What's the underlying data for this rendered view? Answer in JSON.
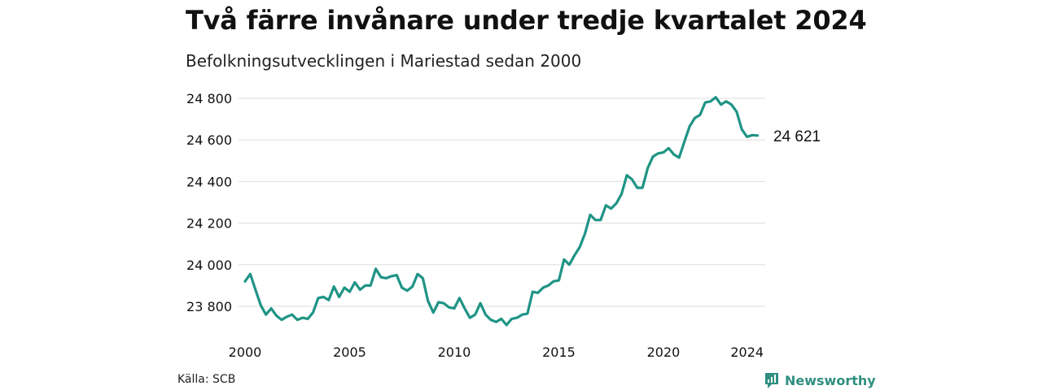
{
  "header": {
    "title": "Två färre invånare under tredje kvartalet 2024",
    "subtitle": "Befolkningsutvecklingen i Mariestad sedan 2000"
  },
  "footer": {
    "source": "Källa: SCB",
    "brand": "Newsworthy"
  },
  "colors": {
    "line": "#1f9485",
    "grid": "#dddddd",
    "brand": "#2f8f80"
  },
  "chart_data": {
    "type": "line",
    "title": "Två färre invånare under tredje kvartalet 2024",
    "subtitle": "Befolkningsutvecklingen i Mariestad sedan 2000",
    "xlabel": "",
    "ylabel": "",
    "grid": true,
    "xlim": [
      2000,
      2024.75
    ],
    "ylim": [
      23700,
      24830
    ],
    "yticks": [
      23800,
      24000,
      24200,
      24400,
      24600,
      24800
    ],
    "ytick_labels": [
      "23 800",
      "24 000",
      "24 200",
      "24 400",
      "24 600",
      "24 800"
    ],
    "xticks": [
      2000,
      2005,
      2010,
      2015,
      2020,
      2024
    ],
    "xtick_labels": [
      "2000",
      "2005",
      "2010",
      "2015",
      "2020",
      "2024"
    ],
    "end_label": "24 621",
    "series": [
      {
        "x_start": 2000.0,
        "x_step": 0.25,
        "values": [
          23920,
          23955,
          23880,
          23805,
          23760,
          23790,
          23755,
          23735,
          23750,
          23760,
          23735,
          23745,
          23740,
          23770,
          23840,
          23845,
          23830,
          23895,
          23845,
          23890,
          23870,
          23915,
          23880,
          23900,
          23900,
          23980,
          23940,
          23935,
          23945,
          23950,
          23890,
          23875,
          23895,
          23955,
          23935,
          23825,
          23770,
          23820,
          23815,
          23795,
          23790,
          23840,
          23790,
          23745,
          23760,
          23815,
          23760,
          23735,
          23725,
          23740,
          23710,
          23740,
          23745,
          23760,
          23765,
          23870,
          23865,
          23890,
          23900,
          23920,
          23925,
          24025,
          24000,
          24045,
          24085,
          24150,
          24240,
          24215,
          24215,
          24285,
          24270,
          24295,
          24340,
          24430,
          24410,
          24370,
          24370,
          24465,
          24520,
          24535,
          24540,
          24560,
          24530,
          24515,
          24590,
          24665,
          24705,
          24720,
          24780,
          24785,
          24805,
          24770,
          24785,
          24770,
          24735,
          24650,
          24615,
          24623,
          24621
        ]
      }
    ]
  }
}
